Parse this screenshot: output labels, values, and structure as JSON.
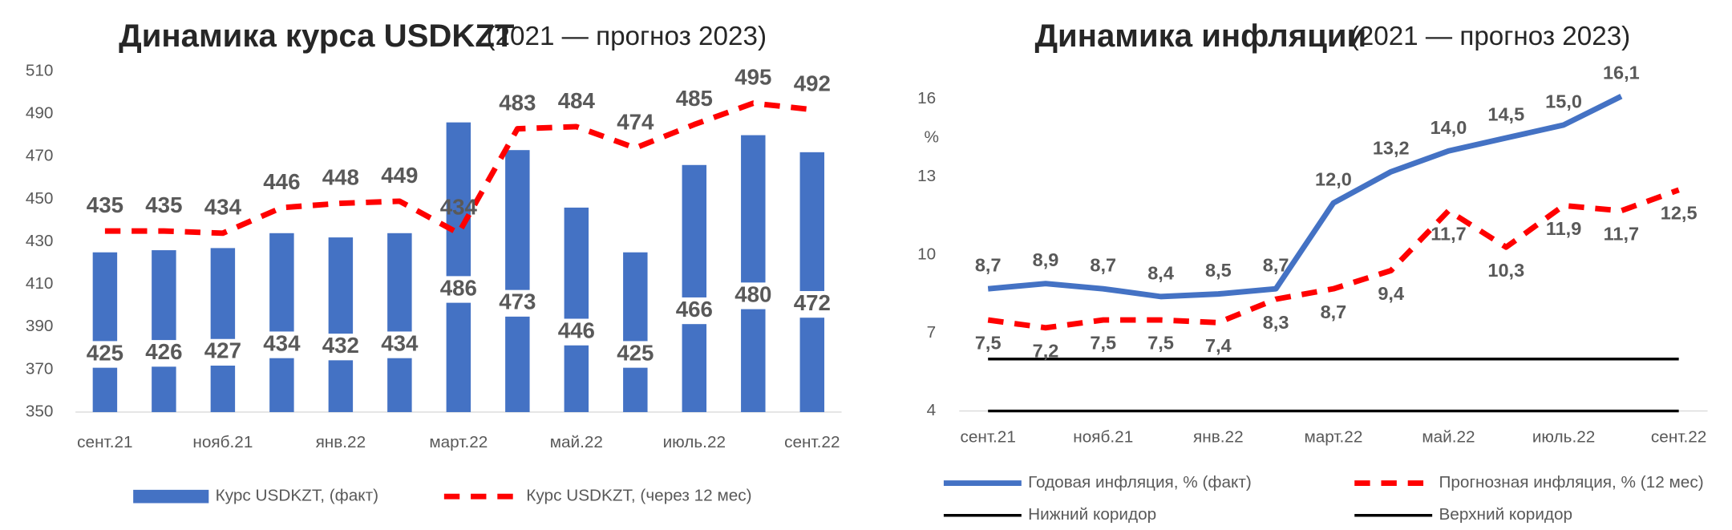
{
  "chart_data": [
    {
      "type": "bar",
      "title": "Динамика курса USDKZT",
      "subtitle": "(2021 — прогноз 2023)",
      "categories": [
        "сент.21",
        null,
        "нояб.21",
        null,
        "янв.22",
        null,
        "март.22",
        null,
        "май.22",
        null,
        "июль.22",
        null,
        "сент.22"
      ],
      "series": [
        {
          "name": "Курс USDKZT, (факт)",
          "type": "bar",
          "color": "#4472c4",
          "values": [
            425,
            426,
            427,
            434,
            432,
            434,
            486,
            473,
            446,
            425,
            466,
            480,
            472
          ]
        },
        {
          "name": "Курс USDKZT, (через 12 мес)",
          "type": "line",
          "dashed": true,
          "color": "#ff0000",
          "values": [
            435,
            435,
            434,
            446,
            448,
            449,
            434,
            483,
            484,
            474,
            485,
            495,
            492
          ]
        }
      ],
      "ylim": [
        350,
        510
      ],
      "yticks": [
        350,
        370,
        390,
        410,
        430,
        450,
        470,
        490,
        510
      ]
    },
    {
      "type": "line",
      "title": "Динамика инфляции",
      "subtitle": "(2021 — прогноз 2023)",
      "y_label": "%",
      "categories": [
        "сент.21",
        null,
        "нояб.21",
        null,
        "янв.22",
        null,
        "март.22",
        null,
        "май.22",
        null,
        "июль.22",
        null,
        "сент.22"
      ],
      "series": [
        {
          "name": "Годовая инфляция, % (факт)",
          "color": "#4472c4",
          "values": [
            8.7,
            8.9,
            8.7,
            8.4,
            8.5,
            8.7,
            12.0,
            13.2,
            14.0,
            14.5,
            15.0,
            16.1,
            null
          ],
          "value_labels": [
            "8,7",
            "8,9",
            "8,7",
            "8,4",
            "8,5",
            "8,7",
            "12,0",
            "13,2",
            "14,0",
            "14,5",
            "15,0",
            "16,1",
            null
          ]
        },
        {
          "name": "Прогнозная инфляция, % (12 мес)",
          "dashed": true,
          "color": "#ff0000",
          "values": [
            7.5,
            7.2,
            7.5,
            7.5,
            7.4,
            8.3,
            8.7,
            9.4,
            11.7,
            10.3,
            11.9,
            11.7,
            12.5
          ],
          "value_labels": [
            "7,5",
            "7,2",
            "7,5",
            "7,5",
            "7,4",
            "8,3",
            "8,7",
            "9,4",
            "11,7",
            "10,3",
            "11,9",
            "11,7",
            "12,5"
          ]
        },
        {
          "name": "Нижний коридор",
          "color": "#000000",
          "values": [
            4,
            4,
            4,
            4,
            4,
            4,
            4,
            4,
            4,
            4,
            4,
            4,
            4
          ]
        },
        {
          "name": "Верхний коридор",
          "color": "#000000",
          "values": [
            6,
            6,
            6,
            6,
            6,
            6,
            6,
            6,
            6,
            6,
            6,
            6,
            6
          ]
        }
      ],
      "ylim": [
        4,
        17
      ],
      "yticks": [
        4,
        7,
        10,
        13,
        16
      ]
    }
  ]
}
